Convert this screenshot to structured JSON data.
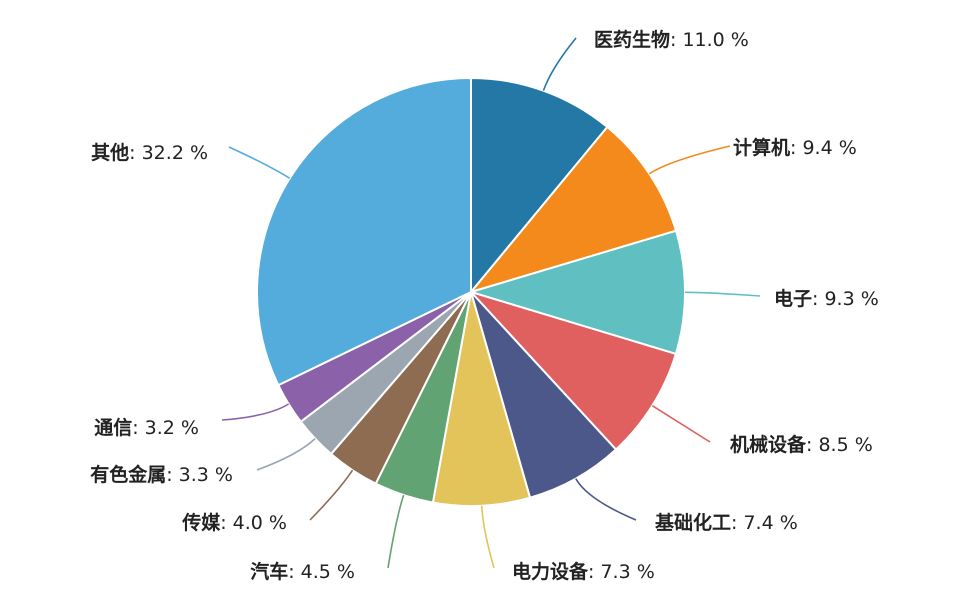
{
  "chart_data": {
    "type": "pie",
    "title": "",
    "value_suffix": " %",
    "slices": [
      {
        "label": "医药生物",
        "value": 11.0,
        "color": "#2478a5"
      },
      {
        "label": "计算机",
        "value": 9.4,
        "color": "#f38a1b"
      },
      {
        "label": "电子",
        "value": 9.3,
        "color": "#5fbfc1"
      },
      {
        "label": "机械设备",
        "value": 8.5,
        "color": "#e05f5f"
      },
      {
        "label": "基础化工",
        "value": 7.4,
        "color": "#4c5889"
      },
      {
        "label": "电力设备",
        "value": 7.3,
        "color": "#e3c45a"
      },
      {
        "label": "汽车",
        "value": 4.5,
        "color": "#61a373"
      },
      {
        "label": "传媒",
        "value": 4.0,
        "color": "#8e6c52"
      },
      {
        "label": "有色金属",
        "value": 3.3,
        "color": "#9ba6b1"
      },
      {
        "label": "通信",
        "value": 3.2,
        "color": "#8b62aa"
      },
      {
        "label": "其他",
        "value": 32.2,
        "color": "#53acdc"
      }
    ]
  }
}
